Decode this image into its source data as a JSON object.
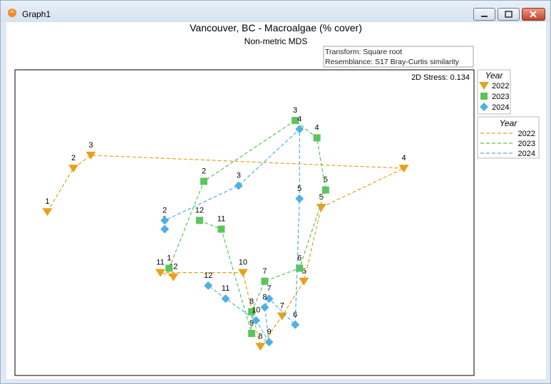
{
  "window": {
    "title": "Graph1"
  },
  "chart_data": {
    "type": "scatter",
    "title": "Vancouver, BC - Macroalgae (% cover)",
    "subtitle": "Non-metric MDS",
    "annotations": [
      "Transform: Square root",
      "Resemblance: S17 Bray-Curtis similarity"
    ],
    "stress": "2D Stress: 0.134",
    "legend_title": "Year",
    "grid": false,
    "axes_labels_shown": false,
    "series": [
      {
        "name": "2022",
        "marker": "triangle-down",
        "color": "#e6a11b",
        "points": [
          {
            "label": "1",
            "x": -4.6,
            "y": 0.8
          },
          {
            "label": "2",
            "x": -4.0,
            "y": 1.8
          },
          {
            "label": "3",
            "x": -3.6,
            "y": 2.1
          },
          {
            "label": "4",
            "x": 3.6,
            "y": 1.8
          },
          {
            "label": "5",
            "x": 1.7,
            "y": 0.9
          },
          {
            "label": "6",
            "x": 1.3,
            "y": -0.8
          },
          {
            "label": "7",
            "x": 0.8,
            "y": -1.6
          },
          {
            "label": "8",
            "x": 0.3,
            "y": -2.3
          },
          {
            "label": "10",
            "x": -0.1,
            "y": -0.6
          },
          {
            "label": "11",
            "x": -2.0,
            "y": -0.6
          },
          {
            "label": "12",
            "x": -1.7,
            "y": -0.7
          }
        ]
      },
      {
        "name": "2023",
        "marker": "square",
        "color": "#5cc45c",
        "points": [
          {
            "label": "1",
            "x": -1.8,
            "y": -0.5
          },
          {
            "label": "2",
            "x": -1.0,
            "y": 1.5
          },
          {
            "label": "3",
            "x": 1.1,
            "y": 2.9
          },
          {
            "label": "4",
            "x": 1.6,
            "y": 2.5
          },
          {
            "label": "5",
            "x": 1.8,
            "y": 1.3
          },
          {
            "label": "6",
            "x": 1.2,
            "y": -0.5
          },
          {
            "label": "7",
            "x": 0.4,
            "y": -0.8
          },
          {
            "label": "8",
            "x": 0.1,
            "y": -1.5
          },
          {
            "label": "9",
            "x": 0.1,
            "y": -2.0
          },
          {
            "label": "11",
            "x": -0.6,
            "y": 0.4
          },
          {
            "label": "12",
            "x": -1.1,
            "y": 0.6
          }
        ]
      },
      {
        "name": "2024",
        "marker": "diamond",
        "color": "#4fb0e3",
        "points": [
          {
            "label": "1",
            "x": -1.9,
            "y": 0.4
          },
          {
            "label": "2",
            "x": -1.9,
            "y": 0.6
          },
          {
            "label": "3",
            "x": -0.2,
            "y": 1.4
          },
          {
            "label": "4",
            "x": 1.2,
            "y": 2.7
          },
          {
            "label": "5",
            "x": 1.2,
            "y": 1.1
          },
          {
            "label": "6",
            "x": 1.1,
            "y": -1.8
          },
          {
            "label": "7",
            "x": 0.5,
            "y": -1.2
          },
          {
            "label": "8",
            "x": 0.4,
            "y": -1.4
          },
          {
            "label": "9",
            "x": 0.5,
            "y": -2.2
          },
          {
            "label": "10",
            "x": 0.2,
            "y": -1.7
          },
          {
            "label": "11",
            "x": -0.5,
            "y": -1.2
          },
          {
            "label": "12",
            "x": -0.9,
            "y": -0.9
          }
        ]
      }
    ]
  }
}
